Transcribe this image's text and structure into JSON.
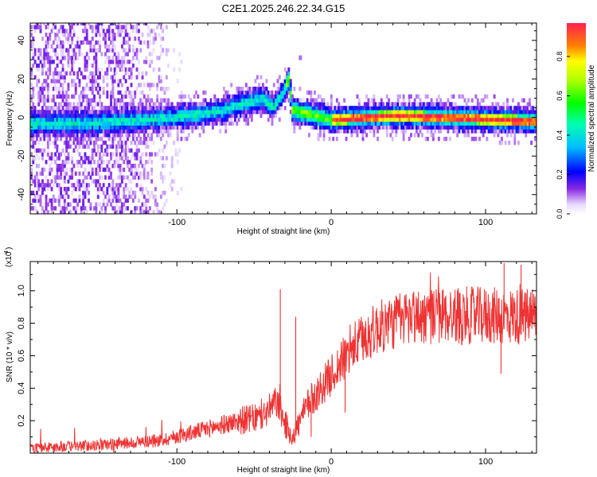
{
  "title": "C2E1.2025.246.22.34.G15",
  "chart_data": [
    {
      "type": "heatmap",
      "xlabel": "Height of straight line (km)",
      "ylabel": "Frequency (Hz)",
      "xlim": [
        -195,
        133
      ],
      "ylim": [
        -50,
        49
      ],
      "xticks": [
        -100,
        0,
        100
      ],
      "yticks": [
        -40,
        -20,
        0,
        20,
        40
      ],
      "colorbar": {
        "label": "Normalized spectral amplitude",
        "range": [
          0,
          0.97
        ],
        "ticks": [
          0.0,
          0.2,
          0.4,
          0.6,
          0.8
        ]
      },
      "ridge": [
        {
          "x": -190,
          "freq": -4
        },
        {
          "x": -160,
          "freq": -4
        },
        {
          "x": -120,
          "freq": -2
        },
        {
          "x": -90,
          "freq": 0
        },
        {
          "x": -70,
          "freq": 3
        },
        {
          "x": -55,
          "freq": 7
        },
        {
          "x": -45,
          "freq": 9
        },
        {
          "x": -38,
          "freq": 4
        },
        {
          "x": -32,
          "freq": 12
        },
        {
          "x": -28,
          "freq": 19
        },
        {
          "x": -26,
          "freq": 3
        },
        {
          "x": 0,
          "freq": -2
        },
        {
          "x": 40,
          "freq": 0
        },
        {
          "x": 80,
          "freq": -1
        },
        {
          "x": 133,
          "freq": -3
        }
      ],
      "outlier": {
        "x": -20,
        "freq": 31
      }
    },
    {
      "type": "line",
      "xlabel": "Height of straight line (km)",
      "ylabel": "SNR (10 * v/v)",
      "yscale_label": "(x10",
      "yscale_exp": "4",
      "yscale_close": ")",
      "xlim": [
        -195,
        133
      ],
      "ylim": [
        0,
        1.18
      ],
      "xticks": [
        -100,
        0,
        100
      ],
      "yticks": [
        0.2,
        0.4,
        0.6,
        0.8,
        1.0
      ],
      "series": [
        {
          "name": "SNR",
          "color": "#ee3333",
          "envelope": [
            {
              "x": -195,
              "y": 0.03
            },
            {
              "x": -150,
              "y": 0.05
            },
            {
              "x": -110,
              "y": 0.08
            },
            {
              "x": -80,
              "y": 0.15
            },
            {
              "x": -60,
              "y": 0.2
            },
            {
              "x": -45,
              "y": 0.22
            },
            {
              "x": -35,
              "y": 0.32
            },
            {
              "x": -30,
              "y": 0.18
            },
            {
              "x": -25,
              "y": 0.1
            },
            {
              "x": -15,
              "y": 0.3
            },
            {
              "x": 0,
              "y": 0.48
            },
            {
              "x": 15,
              "y": 0.66
            },
            {
              "x": 30,
              "y": 0.77
            },
            {
              "x": 50,
              "y": 0.84
            },
            {
              "x": 80,
              "y": 0.85
            },
            {
              "x": 133,
              "y": 0.84
            }
          ],
          "peaks": [
            {
              "x": -33,
              "y": 1.01
            },
            {
              "x": -23,
              "y": 0.84
            },
            {
              "x": -13,
              "y": 0.1
            },
            {
              "x": 9,
              "y": 0.25
            },
            {
              "x": 110,
              "y": 0.49
            },
            {
              "x": 112,
              "y": 1.17
            },
            {
              "x": 123,
              "y": 1.16
            }
          ]
        }
      ]
    }
  ]
}
